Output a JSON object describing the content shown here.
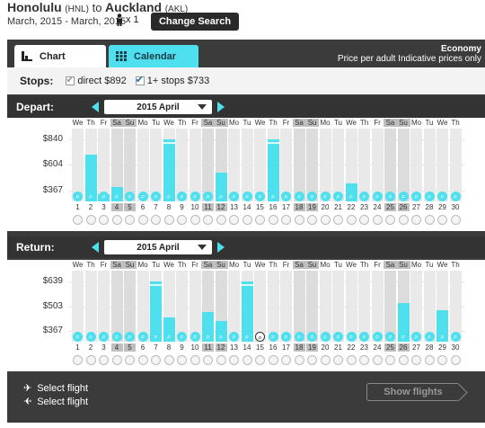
{
  "header": {
    "origin": "Honolulu",
    "origin_code": "(HNL)",
    "to_word": "to",
    "destination": "Auckland",
    "destination_code": "(AKL)",
    "dates": "March, 2015 - March, 2015",
    "passengers": "x 1",
    "change_search": "Change Search"
  },
  "tabs": {
    "chart": "Chart",
    "calendar": "Calendar"
  },
  "cabin": {
    "class": "Economy",
    "note": "Price per adult Indicative prices only"
  },
  "stops": {
    "label": "Stops:",
    "direct": "direct $892",
    "one_plus": "1+ stops $733"
  },
  "depart": {
    "title": "Depart:",
    "month": "2015 April"
  },
  "return": {
    "title": "Return:",
    "month": "2015 April"
  },
  "footer": {
    "select_out": "Select flight",
    "select_back": "Select flight",
    "show_flights": "Show flights"
  },
  "weekdays": [
    "We",
    "Th",
    "Fr",
    "Sa",
    "Su",
    "Mo",
    "Tu",
    "We",
    "Th",
    "Fr",
    "Sa",
    "Su",
    "Mo",
    "Tu",
    "We",
    "Th",
    "Fr",
    "Sa",
    "Su",
    "Mo",
    "Tu",
    "We",
    "Th",
    "Fr",
    "Sa",
    "Su",
    "Mo",
    "Tu",
    "We",
    "Th"
  ],
  "days": [
    1,
    2,
    3,
    4,
    5,
    6,
    7,
    8,
    9,
    10,
    11,
    12,
    13,
    14,
    15,
    16,
    17,
    18,
    19,
    20,
    21,
    22,
    23,
    24,
    25,
    26,
    27,
    28,
    29,
    30
  ],
  "colors": {
    "accent": "#4fe0ef",
    "panel": "#3b3b3b",
    "weekend": "#bfbfbf"
  },
  "chart_data": [
    {
      "type": "bar",
      "title": "Depart:",
      "y_ticks": [
        "$840",
        "$604",
        "$367"
      ],
      "y_tick_values": [
        840,
        604,
        367
      ],
      "categories": [
        1,
        2,
        3,
        4,
        5,
        6,
        7,
        8,
        9,
        10,
        11,
        12,
        13,
        14,
        15,
        16,
        17,
        18,
        19,
        20,
        21,
        22,
        23,
        24,
        25,
        26,
        27,
        28,
        29,
        30
      ],
      "values": [
        null,
        700,
        330,
        400,
        null,
        null,
        null,
        840,
        null,
        null,
        null,
        530,
        null,
        null,
        null,
        840,
        null,
        null,
        null,
        null,
        null,
        430,
        null,
        null,
        null,
        null,
        null,
        null,
        null,
        null
      ],
      "capped_days": [
        8,
        16
      ]
    },
    {
      "type": "bar",
      "title": "Return:",
      "y_ticks": [
        "$639",
        "$503",
        "$367"
      ],
      "y_tick_values": [
        639,
        503,
        367
      ],
      "categories": [
        1,
        2,
        3,
        4,
        5,
        6,
        7,
        8,
        9,
        10,
        11,
        12,
        13,
        14,
        15,
        16,
        17,
        18,
        19,
        20,
        21,
        22,
        23,
        24,
        25,
        26,
        27,
        28,
        29,
        30
      ],
      "values": [
        null,
        null,
        null,
        null,
        null,
        null,
        640,
        440,
        null,
        null,
        470,
        420,
        null,
        640,
        null,
        null,
        null,
        null,
        null,
        null,
        null,
        null,
        null,
        null,
        null,
        520,
        null,
        null,
        480,
        null
      ],
      "capped_days": [
        7,
        14
      ],
      "selected_day": 15
    }
  ]
}
